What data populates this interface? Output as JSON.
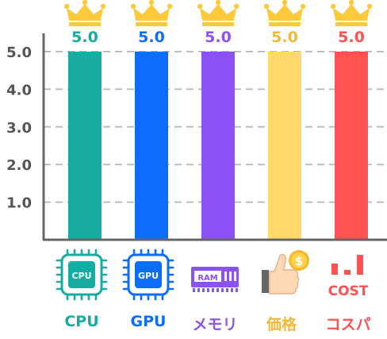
{
  "chart_data": {
    "type": "bar",
    "categories": [
      "CPU",
      "GPU",
      "メモリ",
      "価格",
      "コスパ"
    ],
    "values": [
      5.0,
      5.0,
      5.0,
      5.0,
      5.0
    ],
    "value_labels": [
      "5.0",
      "5.0",
      "5.0",
      "5.0",
      "5.0"
    ],
    "colors": [
      "#16ACA1",
      "#0C6CFC",
      "#8C52F6",
      "#FFD96A",
      "#FF5253"
    ],
    "label_colors": [
      "#16ACA1",
      "#0C6CFC",
      "#8C52F6",
      "#F0B93A",
      "#FF5253"
    ],
    "title": "",
    "xlabel": "",
    "ylabel": "",
    "ylim": [
      0,
      5.0
    ],
    "yticks": [
      1.0,
      2.0,
      3.0,
      4.0,
      5.0
    ],
    "ytick_labels": [
      "1.0",
      "2.0",
      "3.0",
      "4.0",
      "5.0"
    ],
    "grid": true,
    "grid_style": "dashed",
    "legend": "none",
    "bar_top_marker": "crown-icon",
    "category_icons": [
      "cpu-chip-icon",
      "gpu-chip-icon",
      "ram-module-icon",
      "thumbs-up-coin-icon",
      "cost-bars-icon"
    ],
    "icon_texts": {
      "cpu": "CPU",
      "gpu": "GPU",
      "ram": "RAM",
      "coin": "$",
      "cost": "COST"
    },
    "crown_color": "#FFC93C"
  }
}
